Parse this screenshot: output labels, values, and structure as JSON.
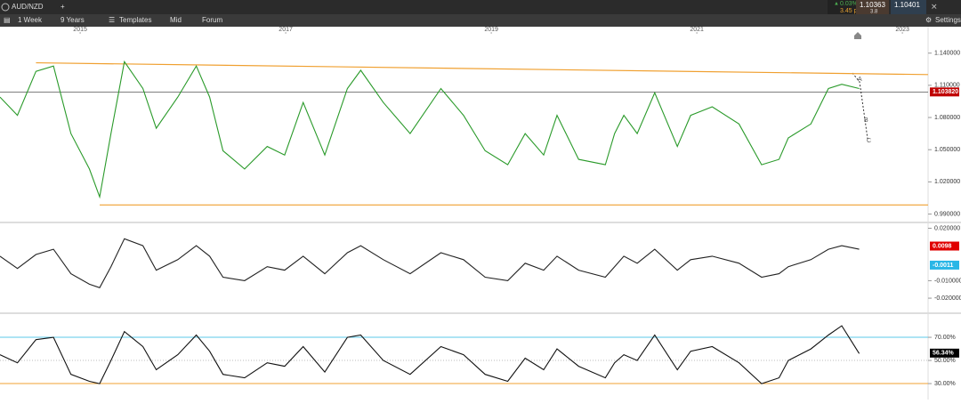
{
  "toolbar": {
    "symbol": "AUD/NZD",
    "interval": "1 Week",
    "range": "9 Years",
    "templates": "Templates",
    "price_type": "Mid",
    "forum": "Forum",
    "change": "0.03%",
    "change_pts": "3.45 pts",
    "bid": "1.10363",
    "ask": "1.10401",
    "spread": "3.8",
    "settings": "Settings"
  },
  "chart_data": [
    {
      "type": "line",
      "x": [
        2014.22,
        2014.39,
        2014.57,
        2014.74,
        2014.91,
        2015.09,
        2015.19,
        2015.3,
        2015.43,
        2015.61,
        2015.74,
        2015.95,
        2016.13,
        2016.26,
        2016.39,
        2016.6,
        2016.82,
        2016.99,
        2017.17,
        2017.38,
        2017.6,
        2017.73,
        2017.95,
        2018.21,
        2018.51,
        2018.73,
        2018.94,
        2019.16,
        2019.33,
        2019.51,
        2019.64,
        2019.85,
        2020.11,
        2020.2,
        2020.29,
        2020.42,
        2020.59,
        2020.81,
        2020.94,
        2021.15,
        2021.41,
        2021.63,
        2021.8,
        2021.89,
        2022.11,
        2022.28,
        2022.41,
        2022.58
      ],
      "xlim": [
        2014.22,
        2023.25
      ],
      "xticks": [
        2015,
        2017,
        2019,
        2021,
        2023
      ],
      "series": [
        {
          "color": "#2a9a2a",
          "values": [
            1.099,
            1.082,
            1.123,
            1.128,
            1.065,
            1.032,
            1.006,
            1.065,
            1.132,
            1.107,
            1.07,
            1.099,
            1.128,
            1.099,
            1.049,
            1.032,
            1.053,
            1.045,
            1.094,
            1.045,
            1.107,
            1.124,
            1.094,
            1.065,
            1.107,
            1.082,
            1.049,
            1.036,
            1.065,
            1.045,
            1.082,
            1.041,
            1.036,
            1.065,
            1.082,
            1.065,
            1.103,
            1.053,
            1.082,
            1.09,
            1.074,
            1.036,
            1.041,
            1.061,
            1.074,
            1.107,
            1.111,
            1.107
          ]
        }
      ],
      "ylim": [
        0.983,
        1.158
      ],
      "yticks": [
        {
          "value": 1.14,
          "label": "1.140000"
        },
        {
          "value": 1.11,
          "label": "1.110000"
        },
        {
          "value": 1.08,
          "label": "1.080000"
        },
        {
          "value": 1.05,
          "label": "1.050000"
        },
        {
          "value": 1.02,
          "label": "1.020000"
        },
        {
          "value": 0.99,
          "label": "0.990000"
        }
      ],
      "trendline": {
        "x": [
          2014.57,
          2023.25
        ],
        "values": [
          1.131,
          1.12
        ],
        "color": "#f0a030"
      },
      "support": {
        "x": [
          2015.19,
          2023.25
        ],
        "values": [
          0.9985,
          0.9985
        ],
        "color": "#f0a030"
      },
      "last_price": {
        "value": 1.10382,
        "label": "1.103820",
        "color": "#c00000"
      },
      "annotations": [
        "A",
        "B",
        "C"
      ]
    },
    {
      "type": "line",
      "series": [
        {
          "color": "#222222",
          "values": [
            0.004,
            -0.003,
            0.005,
            0.008,
            -0.006,
            -0.012,
            -0.014,
            -0.002,
            0.014,
            0.01,
            -0.004,
            0.002,
            0.01,
            0.004,
            -0.008,
            -0.01,
            -0.002,
            -0.004,
            0.004,
            -0.006,
            0.006,
            0.01,
            0.002,
            -0.006,
            0.006,
            0.002,
            -0.008,
            -0.01,
            0.0,
            -0.004,
            0.004,
            -0.004,
            -0.008,
            -0.002,
            0.004,
            0.0,
            0.008,
            -0.004,
            0.002,
            0.004,
            0.0,
            -0.008,
            -0.006,
            -0.002,
            0.002,
            0.008,
            0.01,
            0.008
          ]
        }
      ],
      "ylim": [
        -0.0276,
        0.0233
      ],
      "yticks": [
        {
          "value": 0.02,
          "label": "0.020000"
        },
        {
          "value": -0.01,
          "label": "-0.010000"
        },
        {
          "value": -0.02,
          "label": "-0.020000"
        }
      ],
      "current": [
        {
          "value": 0.0098,
          "color": "#e00000"
        },
        {
          "value": -0.0011,
          "color": "#29b6e6"
        }
      ]
    },
    {
      "type": "line",
      "series": [
        {
          "color": "#111111",
          "values": [
            55,
            48,
            68,
            70,
            38,
            32,
            30,
            50,
            75,
            62,
            42,
            55,
            72,
            58,
            38,
            35,
            48,
            45,
            62,
            40,
            70,
            72,
            50,
            38,
            62,
            55,
            38,
            32,
            52,
            42,
            60,
            45,
            35,
            48,
            55,
            50,
            72,
            42,
            58,
            62,
            48,
            30,
            35,
            50,
            60,
            72,
            80,
            56
          ]
        }
      ],
      "ylim": [
        16.2,
        88.5
      ],
      "yticks": [
        {
          "value": 70,
          "label": "70.00%"
        },
        {
          "value": 50,
          "label": "50.00%"
        },
        {
          "value": 30,
          "label": "30.00%"
        }
      ],
      "levels": [
        {
          "value": 70,
          "color": "#5bc8e8"
        },
        {
          "value": 30,
          "color": "#f0a030"
        }
      ],
      "current": {
        "value": 56.34,
        "label": "56.34%",
        "color": "#000000"
      }
    }
  ]
}
